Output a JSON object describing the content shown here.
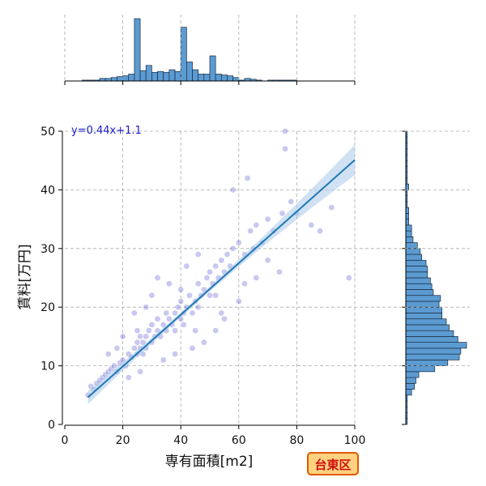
{
  "chart_data": [
    {
      "type": "scatter",
      "role": "main",
      "xlabel": "専有面積[m2]",
      "ylabel": "賃料[万円]",
      "xlim": [
        0,
        100
      ],
      "ylim": [
        0,
        50
      ],
      "xticks": [
        0,
        20,
        40,
        60,
        80,
        100
      ],
      "yticks": [
        0,
        10,
        20,
        30,
        40,
        50
      ],
      "grid": true,
      "annotation": "y=0.44x+1.1",
      "regression": {
        "slope": 0.44,
        "intercept": 1.1,
        "x_range": [
          8,
          100
        ]
      },
      "points": [
        [
          8,
          5
        ],
        [
          9,
          6.5
        ],
        [
          10,
          6
        ],
        [
          11,
          7
        ],
        [
          12,
          7.5
        ],
        [
          13,
          8
        ],
        [
          14,
          8.5
        ],
        [
          15,
          9
        ],
        [
          16,
          9.5
        ],
        [
          17,
          10
        ],
        [
          18,
          9
        ],
        [
          19,
          10.5
        ],
        [
          20,
          11
        ],
        [
          21,
          10
        ],
        [
          22,
          12
        ],
        [
          23,
          11.5
        ],
        [
          24,
          13
        ],
        [
          25,
          12
        ],
        [
          25,
          14
        ],
        [
          25,
          16
        ],
        [
          26,
          13
        ],
        [
          26,
          15
        ],
        [
          27,
          14
        ],
        [
          27,
          12
        ],
        [
          28,
          15
        ],
        [
          28,
          13
        ],
        [
          29,
          16
        ],
        [
          30,
          14
        ],
        [
          30,
          17
        ],
        [
          31,
          15
        ],
        [
          32,
          16
        ],
        [
          32,
          18
        ],
        [
          33,
          15
        ],
        [
          34,
          17
        ],
        [
          35,
          16
        ],
        [
          35,
          19
        ],
        [
          36,
          18
        ],
        [
          37,
          17
        ],
        [
          38,
          19
        ],
        [
          38,
          16
        ],
        [
          39,
          20
        ],
        [
          40,
          18
        ],
        [
          40,
          21
        ],
        [
          40,
          23
        ],
        [
          41,
          19
        ],
        [
          41,
          17
        ],
        [
          42,
          20
        ],
        [
          43,
          22
        ],
        [
          44,
          19
        ],
        [
          45,
          21
        ],
        [
          46,
          20
        ],
        [
          46,
          24
        ],
        [
          47,
          22
        ],
        [
          48,
          23
        ],
        [
          49,
          25
        ],
        [
          50,
          22
        ],
        [
          50,
          26
        ],
        [
          51,
          24
        ],
        [
          52,
          27
        ],
        [
          52,
          22
        ],
        [
          53,
          25
        ],
        [
          54,
          28
        ],
        [
          55,
          26
        ],
        [
          56,
          29
        ],
        [
          57,
          27
        ],
        [
          58,
          30
        ],
        [
          60,
          31
        ],
        [
          62,
          29
        ],
        [
          64,
          33
        ],
        [
          65,
          30
        ],
        [
          66,
          34
        ],
        [
          68,
          31
        ],
        [
          70,
          35
        ],
        [
          72,
          33
        ],
        [
          75,
          36
        ],
        [
          76,
          47
        ],
        [
          76,
          50
        ],
        [
          78,
          38
        ],
        [
          80,
          36
        ],
        [
          85,
          34
        ],
        [
          88,
          33
        ],
        [
          92,
          37
        ],
        [
          98,
          25
        ],
        [
          58,
          40
        ],
        [
          63,
          42
        ],
        [
          70,
          28
        ],
        [
          74,
          26
        ],
        [
          44,
          13
        ],
        [
          48,
          14
        ],
        [
          52,
          16
        ],
        [
          36,
          24
        ],
        [
          30,
          22
        ],
        [
          24,
          19
        ],
        [
          28,
          20
        ],
        [
          32,
          25
        ],
        [
          42,
          27
        ],
        [
          46,
          29
        ],
        [
          54,
          19
        ],
        [
          60,
          21
        ],
        [
          66,
          25
        ],
        [
          20,
          15
        ],
        [
          18,
          13
        ],
        [
          15,
          12
        ],
        [
          22,
          8
        ],
        [
          26,
          9
        ],
        [
          34,
          11
        ],
        [
          38,
          12
        ],
        [
          45,
          16
        ],
        [
          55,
          18
        ],
        [
          62,
          24
        ]
      ]
    },
    {
      "type": "bar",
      "role": "top-marginal",
      "x": [
        0,
        2,
        4,
        6,
        8,
        10,
        12,
        14,
        16,
        18,
        20,
        22,
        24,
        26,
        28,
        30,
        32,
        34,
        36,
        38,
        40,
        42,
        44,
        46,
        48,
        50,
        52,
        54,
        56,
        58,
        60,
        62,
        64,
        66,
        68,
        70,
        72,
        74,
        76,
        78,
        80
      ],
      "values": [
        0,
        0,
        0,
        1,
        1,
        1,
        3,
        3,
        4,
        5,
        6,
        8,
        72,
        12,
        18,
        10,
        11,
        10,
        13,
        11,
        62,
        22,
        13,
        8,
        8,
        29,
        8,
        7,
        6,
        4,
        1,
        3,
        2,
        1,
        0,
        1,
        1,
        1,
        1,
        1,
        0
      ]
    },
    {
      "type": "bar",
      "role": "right-marginal",
      "orientation": "horizontal",
      "y": [
        0,
        1,
        2,
        3,
        4,
        5,
        6,
        7,
        8,
        9,
        10,
        11,
        12,
        13,
        14,
        15,
        16,
        17,
        18,
        19,
        20,
        21,
        22,
        23,
        24,
        25,
        26,
        27,
        28,
        29,
        30,
        31,
        32,
        33,
        34,
        35,
        36,
        37,
        38,
        39,
        40,
        41,
        42,
        43,
        44,
        45,
        46,
        47,
        48,
        49
      ],
      "values": [
        1,
        1,
        1,
        1,
        1,
        4,
        6,
        7,
        9,
        20,
        29,
        37,
        38,
        42,
        36,
        33,
        30,
        28,
        25,
        25,
        23,
        24,
        19,
        18,
        17,
        15,
        15,
        14,
        11,
        10,
        8,
        5,
        4,
        4,
        2,
        2,
        2,
        1,
        1,
        1,
        2,
        1,
        1,
        1,
        1,
        1,
        1,
        1,
        1,
        1
      ]
    }
  ],
  "badge": {
    "label": "台東区"
  },
  "colors": {
    "point": "#3a3ac8",
    "line": "#1f77b4",
    "band": "#a8c8e8",
    "bar": "#5b9bd1",
    "bar_edge": "#1a2a40",
    "annotation": "#1a1acc",
    "badge_bg": "#ffd27f",
    "badge_border": "#e05a00",
    "badge_text": "#d01010"
  }
}
